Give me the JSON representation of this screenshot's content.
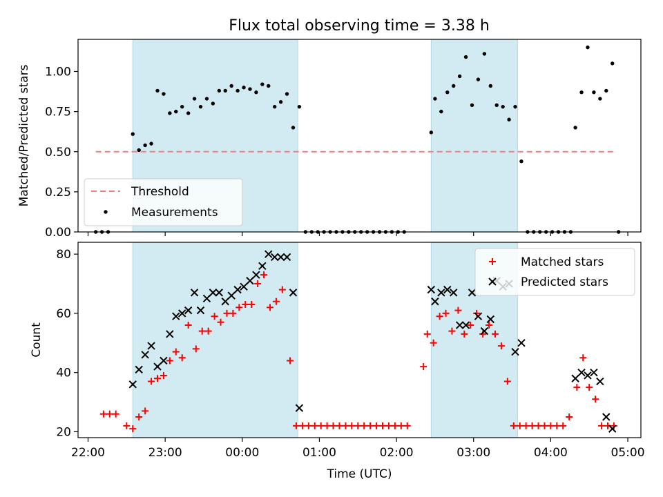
{
  "title": "Flux total observing time = 3.38 h",
  "colors": {
    "shade": "#add8e6",
    "threshold": "#f08080",
    "measurement": "#000000",
    "matched": "#ff0000",
    "predicted": "#000000"
  },
  "chart_data": [
    {
      "type": "scatter",
      "panel": "top",
      "ylabel": "Matched/Predicted stars",
      "xlim": [
        21.87,
        29.17
      ],
      "ylim": [
        0,
        1.2
      ],
      "yticks": [
        0.0,
        0.25,
        0.5,
        0.75,
        1.0
      ],
      "ytick_labels": [
        "0.00",
        "0.25",
        "0.50",
        "0.75",
        "1.00"
      ],
      "shaded_intervals": [
        [
          22.58,
          24.72
        ],
        [
          26.45,
          27.57
        ]
      ],
      "threshold": {
        "label": "Threshold",
        "y": 0.5,
        "x_range": [
          22.1,
          28.85
        ]
      },
      "legend": {
        "location": "lower left",
        "entries": [
          "Threshold",
          "Measurements"
        ]
      },
      "series": [
        {
          "name": "Measurements",
          "points": [
            [
              22.1,
              0
            ],
            [
              22.18,
              0
            ],
            [
              22.26,
              0
            ],
            [
              22.58,
              0.61
            ],
            [
              22.66,
              0.51
            ],
            [
              22.74,
              0.54
            ],
            [
              22.82,
              0.55
            ],
            [
              22.9,
              0.88
            ],
            [
              22.98,
              0.86
            ],
            [
              23.06,
              0.74
            ],
            [
              23.14,
              0.75
            ],
            [
              23.22,
              0.78
            ],
            [
              23.3,
              0.74
            ],
            [
              23.38,
              0.83
            ],
            [
              23.46,
              0.78
            ],
            [
              23.54,
              0.83
            ],
            [
              23.62,
              0.8
            ],
            [
              23.7,
              0.88
            ],
            [
              23.78,
              0.88
            ],
            [
              23.86,
              0.91
            ],
            [
              23.94,
              0.88
            ],
            [
              24.02,
              0.9
            ],
            [
              24.1,
              0.89
            ],
            [
              24.18,
              0.87
            ],
            [
              24.26,
              0.92
            ],
            [
              24.34,
              0.91
            ],
            [
              24.42,
              0.78
            ],
            [
              24.5,
              0.81
            ],
            [
              24.58,
              0.86
            ],
            [
              24.66,
              0.65
            ],
            [
              24.74,
              0.78
            ],
            [
              24.82,
              0
            ],
            [
              24.9,
              0
            ],
            [
              24.98,
              0
            ],
            [
              25.06,
              0
            ],
            [
              25.14,
              0
            ],
            [
              25.22,
              0
            ],
            [
              25.3,
              0
            ],
            [
              25.38,
              0
            ],
            [
              25.46,
              0
            ],
            [
              25.54,
              0
            ],
            [
              25.62,
              0
            ],
            [
              25.7,
              0
            ],
            [
              25.78,
              0
            ],
            [
              25.86,
              0
            ],
            [
              25.94,
              0
            ],
            [
              26.02,
              0
            ],
            [
              26.1,
              0
            ],
            [
              26.45,
              0.62
            ],
            [
              26.5,
              0.83
            ],
            [
              26.58,
              0.75
            ],
            [
              26.66,
              0.87
            ],
            [
              26.74,
              0.91
            ],
            [
              26.82,
              0.97
            ],
            [
              26.9,
              1.09
            ],
            [
              26.98,
              0.79
            ],
            [
              27.06,
              0.95
            ],
            [
              27.14,
              1.11
            ],
            [
              27.22,
              0.91
            ],
            [
              27.3,
              0.79
            ],
            [
              27.38,
              0.78
            ],
            [
              27.46,
              0.7
            ],
            [
              27.54,
              0.78
            ],
            [
              27.62,
              0.44
            ],
            [
              27.7,
              0
            ],
            [
              27.78,
              0
            ],
            [
              27.86,
              0
            ],
            [
              27.94,
              0
            ],
            [
              28.02,
              0
            ],
            [
              28.1,
              0
            ],
            [
              28.18,
              0
            ],
            [
              28.26,
              0
            ],
            [
              28.32,
              0.65
            ],
            [
              28.4,
              0.87
            ],
            [
              28.48,
              1.15
            ],
            [
              28.56,
              0.87
            ],
            [
              28.64,
              0.83
            ],
            [
              28.72,
              0.88
            ],
            [
              28.8,
              1.05
            ],
            [
              28.88,
              0
            ]
          ]
        }
      ]
    },
    {
      "type": "scatter",
      "panel": "bottom",
      "title": "",
      "xlabel": "Time (UTC)",
      "ylabel": "Count",
      "xlim": [
        21.87,
        29.17
      ],
      "ylim": [
        18,
        84
      ],
      "yticks": [
        20,
        40,
        60,
        80
      ],
      "ytick_labels": [
        "20",
        "40",
        "60",
        "80"
      ],
      "xticks": [
        22,
        23,
        24,
        25,
        26,
        27,
        28,
        29
      ],
      "xtick_labels": [
        "22:00",
        "23:00",
        "00:00",
        "01:00",
        "02:00",
        "03:00",
        "04:00",
        "05:00"
      ],
      "shaded_intervals": [
        [
          22.58,
          24.72
        ],
        [
          26.45,
          27.57
        ]
      ],
      "legend": {
        "location": "upper right",
        "entries": [
          "Matched stars",
          "Predicted stars"
        ]
      },
      "series": [
        {
          "name": "Matched stars",
          "marker": "plus",
          "points": [
            [
              22.2,
              26
            ],
            [
              22.28,
              26
            ],
            [
              22.36,
              26
            ],
            [
              22.5,
              22
            ],
            [
              22.58,
              21
            ],
            [
              22.66,
              25
            ],
            [
              22.74,
              27
            ],
            [
              22.82,
              37
            ],
            [
              22.9,
              38
            ],
            [
              22.98,
              39
            ],
            [
              23.06,
              44
            ],
            [
              23.14,
              47
            ],
            [
              23.22,
              45
            ],
            [
              23.3,
              56
            ],
            [
              23.4,
              48
            ],
            [
              23.48,
              54
            ],
            [
              23.56,
              54
            ],
            [
              23.64,
              59
            ],
            [
              23.72,
              57
            ],
            [
              23.8,
              60
            ],
            [
              23.88,
              60
            ],
            [
              23.96,
              62
            ],
            [
              24.04,
              63
            ],
            [
              24.12,
              63
            ],
            [
              24.2,
              70
            ],
            [
              24.28,
              73
            ],
            [
              24.36,
              62
            ],
            [
              24.44,
              64
            ],
            [
              24.52,
              68
            ],
            [
              24.62,
              44
            ],
            [
              24.7,
              22
            ],
            [
              24.78,
              22
            ],
            [
              24.86,
              22
            ],
            [
              24.94,
              22
            ],
            [
              25.02,
              22
            ],
            [
              25.1,
              22
            ],
            [
              25.18,
              22
            ],
            [
              25.26,
              22
            ],
            [
              25.34,
              22
            ],
            [
              25.42,
              22
            ],
            [
              25.5,
              22
            ],
            [
              25.58,
              22
            ],
            [
              25.66,
              22
            ],
            [
              25.74,
              22
            ],
            [
              25.82,
              22
            ],
            [
              25.9,
              22
            ],
            [
              25.98,
              22
            ],
            [
              26.06,
              22
            ],
            [
              26.14,
              22
            ],
            [
              26.35,
              42
            ],
            [
              26.4,
              53
            ],
            [
              26.48,
              50
            ],
            [
              26.56,
              59
            ],
            [
              26.64,
              60
            ],
            [
              26.72,
              54
            ],
            [
              26.8,
              61
            ],
            [
              26.88,
              53
            ],
            [
              26.96,
              56
            ],
            [
              27.04,
              60
            ],
            [
              27.12,
              53
            ],
            [
              27.2,
              56
            ],
            [
              27.28,
              53
            ],
            [
              27.36,
              49
            ],
            [
              27.44,
              37
            ],
            [
              27.52,
              22
            ],
            [
              27.6,
              22
            ],
            [
              27.68,
              22
            ],
            [
              27.76,
              22
            ],
            [
              27.84,
              22
            ],
            [
              27.92,
              22
            ],
            [
              28,
              22
            ],
            [
              28.08,
              22
            ],
            [
              28.16,
              22
            ],
            [
              28.24,
              25
            ],
            [
              28.34,
              35
            ],
            [
              28.42,
              45
            ],
            [
              28.5,
              35
            ],
            [
              28.58,
              31
            ],
            [
              28.66,
              22
            ],
            [
              28.74,
              22
            ],
            [
              28.82,
              22
            ]
          ]
        },
        {
          "name": "Predicted stars",
          "marker": "x",
          "points": [
            [
              22.58,
              36
            ],
            [
              22.66,
              41
            ],
            [
              22.74,
              46
            ],
            [
              22.82,
              49
            ],
            [
              22.9,
              42
            ],
            [
              22.98,
              44
            ],
            [
              23.06,
              53
            ],
            [
              23.14,
              59
            ],
            [
              23.22,
              60
            ],
            [
              23.3,
              61
            ],
            [
              23.38,
              67
            ],
            [
              23.46,
              61
            ],
            [
              23.54,
              65
            ],
            [
              23.62,
              67
            ],
            [
              23.7,
              67
            ],
            [
              23.78,
              64
            ],
            [
              23.86,
              66
            ],
            [
              23.94,
              68
            ],
            [
              24.02,
              69
            ],
            [
              24.1,
              71
            ],
            [
              24.18,
              73
            ],
            [
              24.26,
              76
            ],
            [
              24.34,
              80
            ],
            [
              24.42,
              79
            ],
            [
              24.5,
              79
            ],
            [
              24.58,
              79
            ],
            [
              24.66,
              67
            ],
            [
              24.74,
              28
            ],
            [
              26.45,
              68
            ],
            [
              26.5,
              64
            ],
            [
              26.58,
              67
            ],
            [
              26.66,
              68
            ],
            [
              26.74,
              67
            ],
            [
              26.82,
              56
            ],
            [
              26.9,
              56
            ],
            [
              26.98,
              67
            ],
            [
              27.06,
              59
            ],
            [
              27.14,
              54
            ],
            [
              27.22,
              58
            ],
            [
              27.3,
              71
            ],
            [
              27.38,
              69
            ],
            [
              27.46,
              70
            ],
            [
              27.54,
              47
            ],
            [
              27.62,
              50
            ],
            [
              28.32,
              38
            ],
            [
              28.4,
              40
            ],
            [
              28.48,
              39
            ],
            [
              28.56,
              40
            ],
            [
              28.64,
              37
            ],
            [
              28.72,
              25
            ],
            [
              28.8,
              21
            ]
          ]
        }
      ]
    }
  ]
}
